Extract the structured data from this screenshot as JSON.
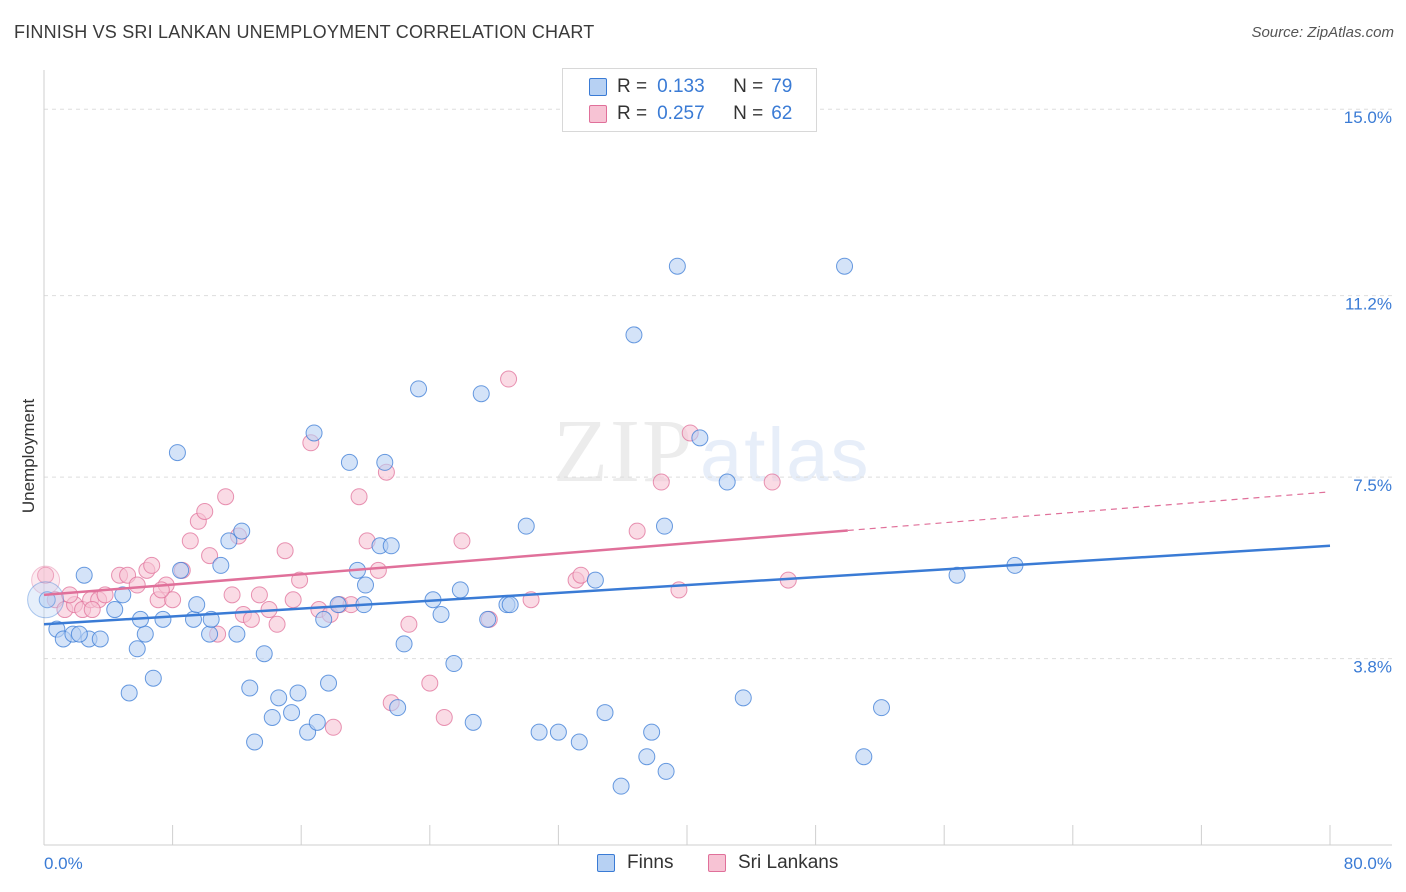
{
  "title": "FINNISH VS SRI LANKAN UNEMPLOYMENT CORRELATION CHART",
  "source": "Source: ZipAtlas.com",
  "watermark": {
    "zip": "ZIP",
    "atlas": "atlas"
  },
  "colors": {
    "finns": "#3a7bd5",
    "finns_fill": "#b7d1f3",
    "sri": "#e0709a",
    "sri_fill": "#f7c3d4",
    "axis_label": "#3a7bd5",
    "grid": "#dddddd"
  },
  "legend": {
    "rows": [
      {
        "r_label": "R =",
        "r_value": "0.133",
        "n_label": "N =",
        "n_value": "79"
      },
      {
        "r_label": "R =",
        "r_value": "0.257",
        "n_label": "N =",
        "n_value": "62"
      }
    ]
  },
  "bottom_legend": {
    "finns": "Finns",
    "sri": "Sri Lankans"
  },
  "chart_data": {
    "type": "scatter",
    "title": "FINNISH VS SRI LANKAN UNEMPLOYMENT CORRELATION CHART",
    "xlabel": "",
    "ylabel": "Unemployment",
    "xlim": [
      0,
      80
    ],
    "ylim": [
      0,
      15.8
    ],
    "x_tick_labels": [
      "0.0%",
      "80.0%"
    ],
    "y_ticks": [
      3.8,
      7.5,
      11.2,
      15.0
    ],
    "y_tick_labels": [
      "3.8%",
      "7.5%",
      "11.2%",
      "15.0%"
    ],
    "series": [
      {
        "name": "Finns",
        "r": 0.133,
        "n": 79,
        "trend": {
          "x0": 0,
          "y0": 4.5,
          "x1": 80,
          "y1": 6.1,
          "dashed_from": null
        },
        "points": [
          [
            0.2,
            5.0
          ],
          [
            0.8,
            4.4
          ],
          [
            1.2,
            4.2
          ],
          [
            1.8,
            4.3
          ],
          [
            2.5,
            5.5
          ],
          [
            2.8,
            4.2
          ],
          [
            3.5,
            4.2
          ],
          [
            4.4,
            4.8
          ],
          [
            4.9,
            5.1
          ],
          [
            5.8,
            4.0
          ],
          [
            6.3,
            4.3
          ],
          [
            6.8,
            3.4
          ],
          [
            5.3,
            3.1
          ],
          [
            7.4,
            4.6
          ],
          [
            8.5,
            5.6
          ],
          [
            8.3,
            8.0
          ],
          [
            9.3,
            4.6
          ],
          [
            10.3,
            4.3
          ],
          [
            11.0,
            5.7
          ],
          [
            11.5,
            6.2
          ],
          [
            12.0,
            4.3
          ],
          [
            12.3,
            6.4
          ],
          [
            12.8,
            3.2
          ],
          [
            13.1,
            2.1
          ],
          [
            13.7,
            3.9
          ],
          [
            14.2,
            2.6
          ],
          [
            14.6,
            3.0
          ],
          [
            15.4,
            2.7
          ],
          [
            15.8,
            3.1
          ],
          [
            16.4,
            2.3
          ],
          [
            16.8,
            8.4
          ],
          [
            17.4,
            4.6
          ],
          [
            17.7,
            3.3
          ],
          [
            18.3,
            4.9
          ],
          [
            19.0,
            7.8
          ],
          [
            19.5,
            5.6
          ],
          [
            20.0,
            5.3
          ],
          [
            20.9,
            6.1
          ],
          [
            21.2,
            7.8
          ],
          [
            21.6,
            6.1
          ],
          [
            22.4,
            4.1
          ],
          [
            23.3,
            9.3
          ],
          [
            24.7,
            4.7
          ],
          [
            24.2,
            5.0
          ],
          [
            25.5,
            3.7
          ],
          [
            25.9,
            5.2
          ],
          [
            26.7,
            2.5
          ],
          [
            27.2,
            9.2
          ],
          [
            27.6,
            4.6
          ],
          [
            28.8,
            4.9
          ],
          [
            29.0,
            4.9
          ],
          [
            30.0,
            6.5
          ],
          [
            30.8,
            2.3
          ],
          [
            32.0,
            2.3
          ],
          [
            33.3,
            2.1
          ],
          [
            34.3,
            5.4
          ],
          [
            34.9,
            2.7
          ],
          [
            35.9,
            1.2
          ],
          [
            36.7,
            10.4
          ],
          [
            37.5,
            1.8
          ],
          [
            37.8,
            2.3
          ],
          [
            38.6,
            6.5
          ],
          [
            38.7,
            1.5
          ],
          [
            39.4,
            11.8
          ],
          [
            40.8,
            8.3
          ],
          [
            42.5,
            7.4
          ],
          [
            43.5,
            3.0
          ],
          [
            49.8,
            11.8
          ],
          [
            51.0,
            1.8
          ],
          [
            52.1,
            2.8
          ],
          [
            56.8,
            5.5
          ],
          [
            60.4,
            5.7
          ],
          [
            9.5,
            4.9
          ],
          [
            2.2,
            4.3
          ],
          [
            6.0,
            4.6
          ],
          [
            19.9,
            4.9
          ],
          [
            22.0,
            2.8
          ],
          [
            17.0,
            2.5
          ],
          [
            10.4,
            4.6
          ]
        ]
      },
      {
        "name": "Sri Lankans",
        "r": 0.257,
        "n": 62,
        "trend": {
          "x0": 0,
          "y0": 5.1,
          "x1": 80,
          "y1": 7.2,
          "dashed_from": 50
        },
        "points": [
          [
            0.1,
            5.5
          ],
          [
            0.7,
            5.0
          ],
          [
            1.3,
            4.8
          ],
          [
            1.9,
            4.9
          ],
          [
            2.4,
            4.8
          ],
          [
            2.9,
            5.0
          ],
          [
            3.4,
            5.0
          ],
          [
            3.8,
            5.1
          ],
          [
            4.7,
            5.5
          ],
          [
            5.2,
            5.5
          ],
          [
            5.8,
            5.3
          ],
          [
            6.4,
            5.6
          ],
          [
            6.7,
            5.7
          ],
          [
            7.1,
            5.0
          ],
          [
            7.6,
            5.3
          ],
          [
            8.0,
            5.0
          ],
          [
            8.6,
            5.6
          ],
          [
            9.1,
            6.2
          ],
          [
            9.6,
            6.6
          ],
          [
            10.0,
            6.8
          ],
          [
            10.3,
            5.9
          ],
          [
            10.8,
            4.3
          ],
          [
            11.3,
            7.1
          ],
          [
            11.7,
            5.1
          ],
          [
            12.1,
            6.3
          ],
          [
            12.4,
            4.7
          ],
          [
            13.4,
            5.1
          ],
          [
            14.0,
            4.8
          ],
          [
            15.0,
            6.0
          ],
          [
            15.5,
            5.0
          ],
          [
            15.9,
            5.4
          ],
          [
            16.6,
            8.2
          ],
          [
            17.1,
            4.8
          ],
          [
            17.8,
            4.7
          ],
          [
            18.4,
            4.9
          ],
          [
            19.1,
            4.9
          ],
          [
            19.6,
            7.1
          ],
          [
            20.1,
            6.2
          ],
          [
            21.3,
            7.6
          ],
          [
            20.8,
            5.6
          ],
          [
            21.6,
            2.9
          ],
          [
            22.7,
            4.5
          ],
          [
            24.0,
            3.3
          ],
          [
            24.9,
            2.6
          ],
          [
            26.0,
            6.2
          ],
          [
            27.7,
            4.6
          ],
          [
            28.9,
            9.5
          ],
          [
            30.3,
            5.0
          ],
          [
            33.1,
            5.4
          ],
          [
            33.4,
            5.5
          ],
          [
            36.9,
            6.4
          ],
          [
            38.4,
            7.4
          ],
          [
            39.5,
            5.2
          ],
          [
            40.2,
            8.4
          ],
          [
            45.3,
            7.4
          ],
          [
            46.3,
            5.4
          ],
          [
            3.0,
            4.8
          ],
          [
            1.6,
            5.1
          ],
          [
            7.3,
            5.2
          ],
          [
            12.9,
            4.6
          ],
          [
            14.5,
            4.5
          ],
          [
            18.0,
            2.4
          ]
        ]
      }
    ]
  }
}
